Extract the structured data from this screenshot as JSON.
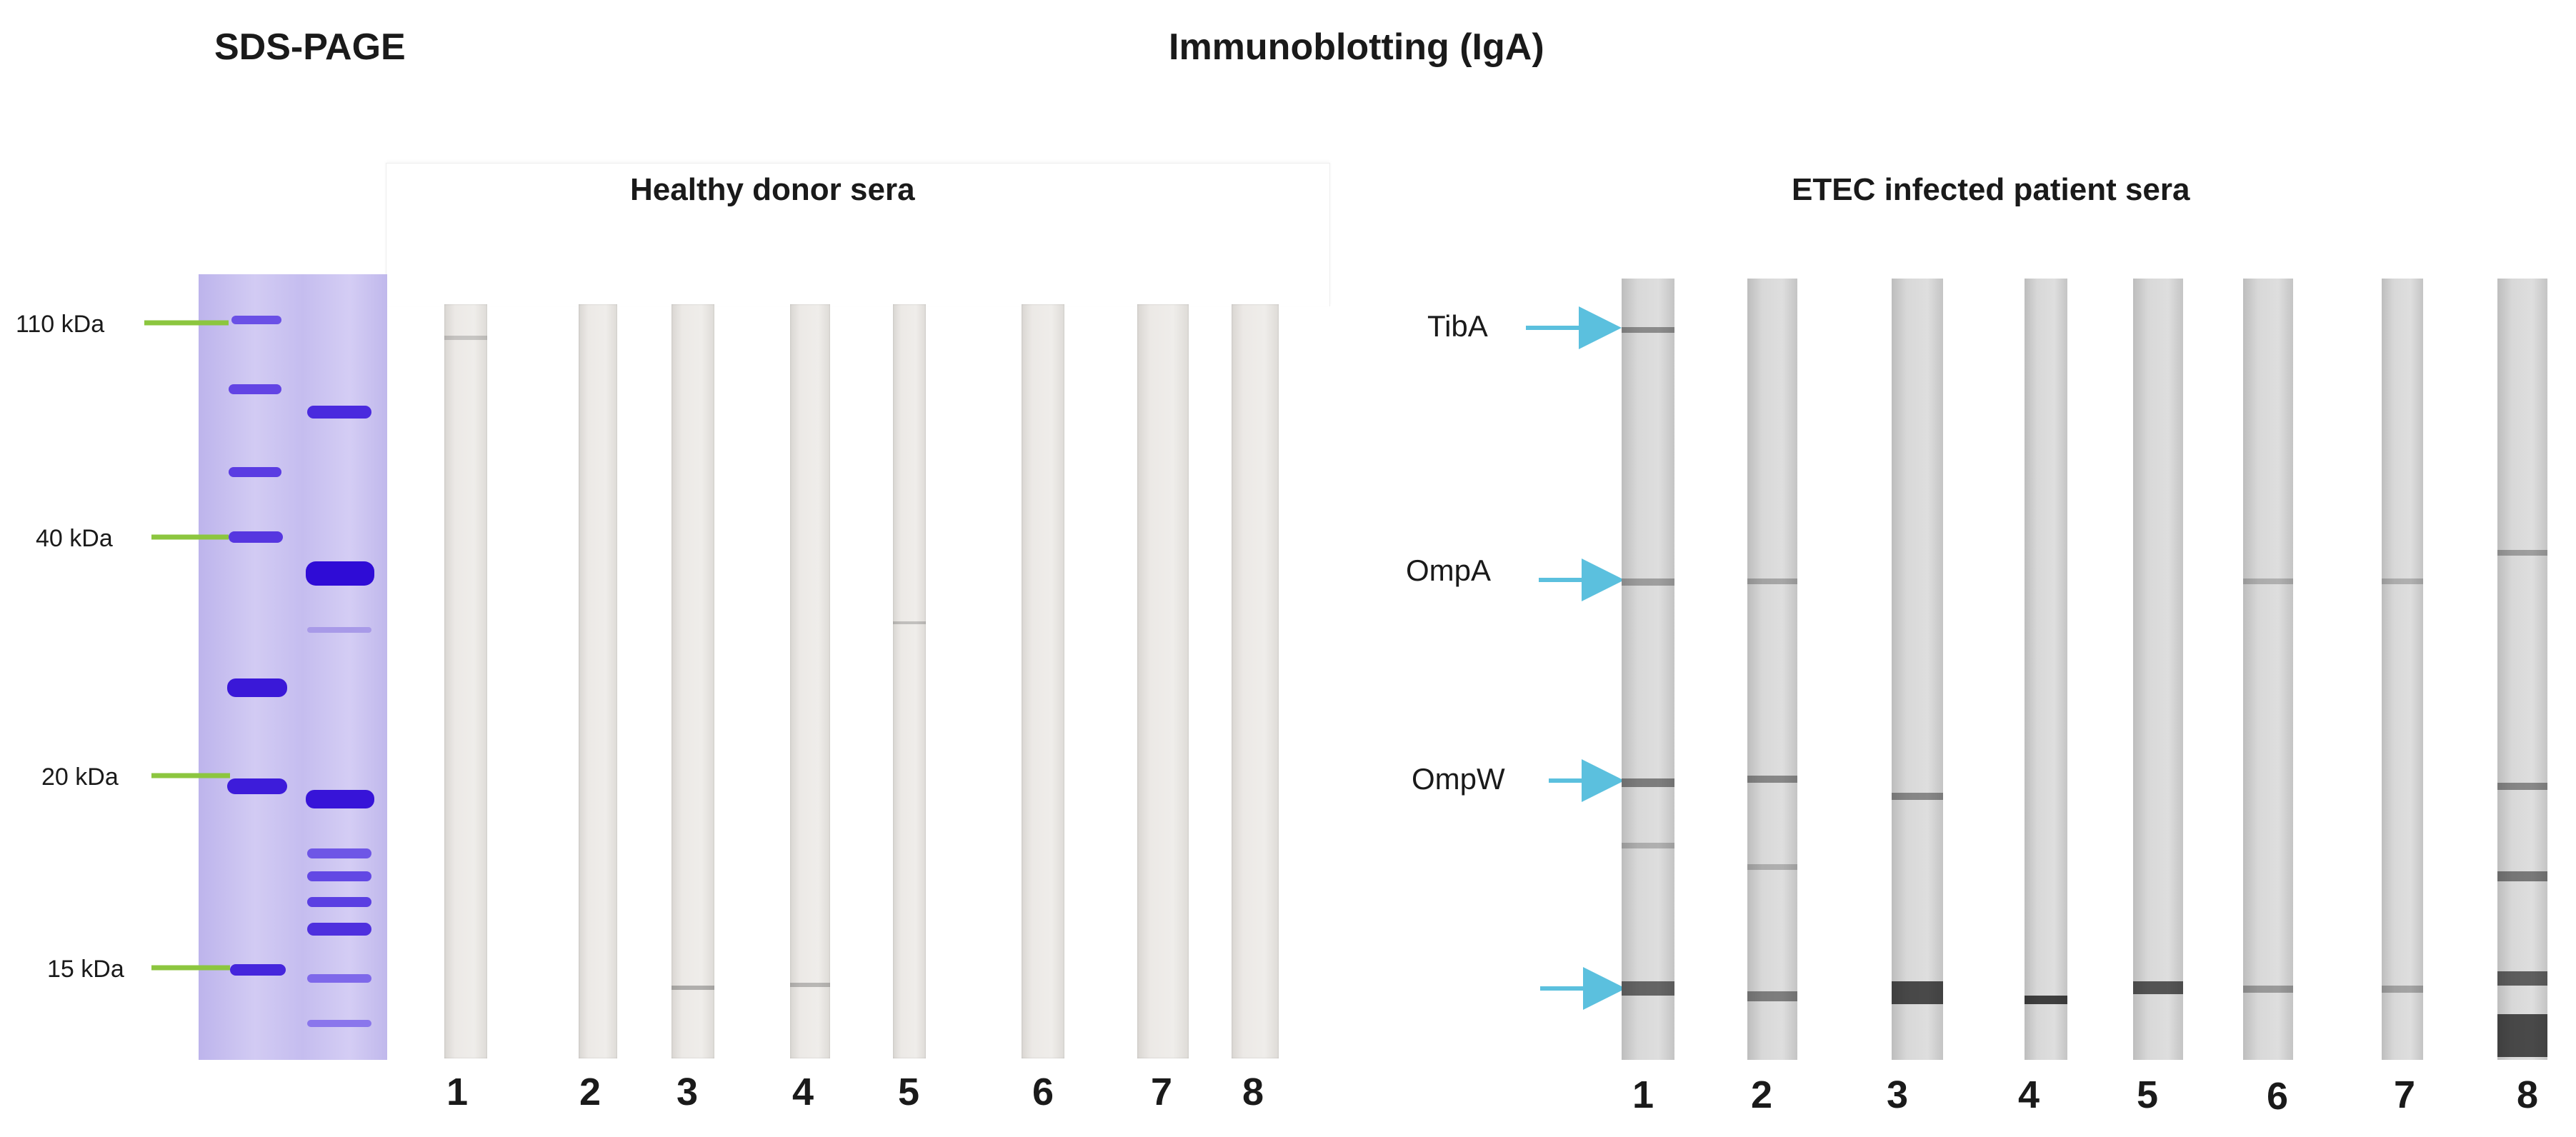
{
  "titles": {
    "sds_page": "SDS-PAGE",
    "immunoblot": "Immunoblotting (IgA)",
    "healthy": "Healthy donor sera",
    "etec": "ETEC infected patient sera"
  },
  "markers": [
    {
      "label": "110 kDa"
    },
    {
      "label": "40 kDa"
    },
    {
      "label": "20 kDa"
    },
    {
      "label": "15 kDa"
    }
  ],
  "proteins": [
    {
      "label": "TibA"
    },
    {
      "label": "OmpA"
    },
    {
      "label": "OmpW"
    },
    {
      "label": ""
    }
  ],
  "healthy_lanes": [
    "1",
    "2",
    "3",
    "4",
    "5",
    "6",
    "7",
    "8"
  ],
  "etec_lanes": [
    "1",
    "2",
    "3",
    "4",
    "5",
    "6",
    "7",
    "8"
  ],
  "colors": {
    "marker_line": "#8cc63f",
    "arrow": "#5bc0de",
    "gel": "#c9c2ee",
    "gel_band": "#4326e0"
  }
}
